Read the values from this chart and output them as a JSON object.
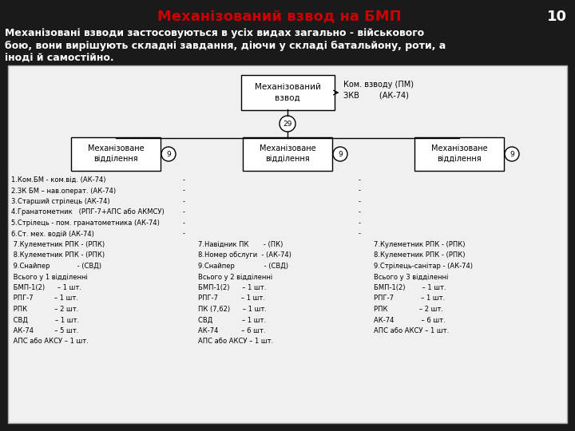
{
  "title": "Механізований взвод на БМП",
  "slide_number": "10",
  "background_color": "#1a1a1a",
  "title_color": "#cc0000",
  "slide_num_color": "#ffffff",
  "body_text_color": "#ffffff",
  "diagram_bg": "#e8e8e8",
  "diagram_text_color": "#000000",
  "body_text_line1": "Механізовані взводи застосовуються в усіх видах загально - військового",
  "body_text_line2": "бою, вони вирішують складні завдання, діючи у складі батальйону, роти, а",
  "body_text_line3": "іноді й самостійно.",
  "root_label": "Механізований\nвзвод",
  "root_note": "Ком. взводу (ПМ)\nЗКВ        (АК-74)",
  "root_number": "29",
  "child_label": "Механізоване\nвідділення",
  "child_number": "9",
  "list_col1_lines": [
    "1.Ком.БМ - ком.від. (АК-74)",
    "2.ЗК БМ – нав.операт. (АК-74)",
    "3.Старший стрілець (АК-74)",
    "4.Гранатометник   (РПГ-7+АПС або АКМСУ)",
    "5.Стрілець - пом. гранатометника (АК-74)",
    "6.Ст. мех. водій (АК-74)",
    " 7.Кулеметник РПК - (РПК)",
    " 8.Кулеметник РПК - (РПК)",
    " 9.Снайпер             - (СВД)",
    " Всього у 1 відділенні",
    " БМП-1(2)      – 1 шт.",
    " РПГ-7          – 1 шт.",
    " РПК             – 2 шт.",
    " СВД             – 1 шт.",
    " АК-74          – 5 шт.",
    " АПС або АКСУ – 1 шт."
  ],
  "list_col1_dashes": [
    "-",
    "-",
    "-",
    "-",
    "-",
    "-",
    "",
    "",
    "",
    "",
    "",
    "",
    "",
    "",
    "",
    ""
  ],
  "list_col1_dashes2": [
    "-",
    "-",
    "-",
    "-",
    "-",
    "-",
    "",
    "",
    "",
    "",
    "",
    "",
    "",
    "",
    "",
    ""
  ],
  "list_col2_lines": [
    "",
    "",
    "",
    "",
    "",
    "",
    "7.Навідник ПК       - (ПК)",
    "8.Номер обслуги  - (АК-74)",
    "9.Снайпер              - (СВД)",
    "Всього у 2 відділенні",
    "БМП-1(2)      – 1 шт.",
    "РПГ-7           – 1 шт.",
    "ПК (7,62)      – 1 шт.",
    "СВД              – 1 шт.",
    "АК-74           – 6 шт.",
    "АПС або АКСУ – 1 шт."
  ],
  "list_col3_lines": [
    "",
    "",
    "",
    "",
    "",
    "",
    "7.Кулеметник РПК - (РПК)",
    "8.Кулеметник РПК - (РПК)",
    "9.Стрілець-санітар - (АК-74)",
    "Всього у 3 відділенні",
    "БМП-1(2)        – 1 шт.",
    "РПГ-7             – 1 шт.",
    "РПК               – 2 шт.",
    "АК-74             – 6 шт.",
    "АПС або АКСУ – 1 шт.",
    ""
  ]
}
